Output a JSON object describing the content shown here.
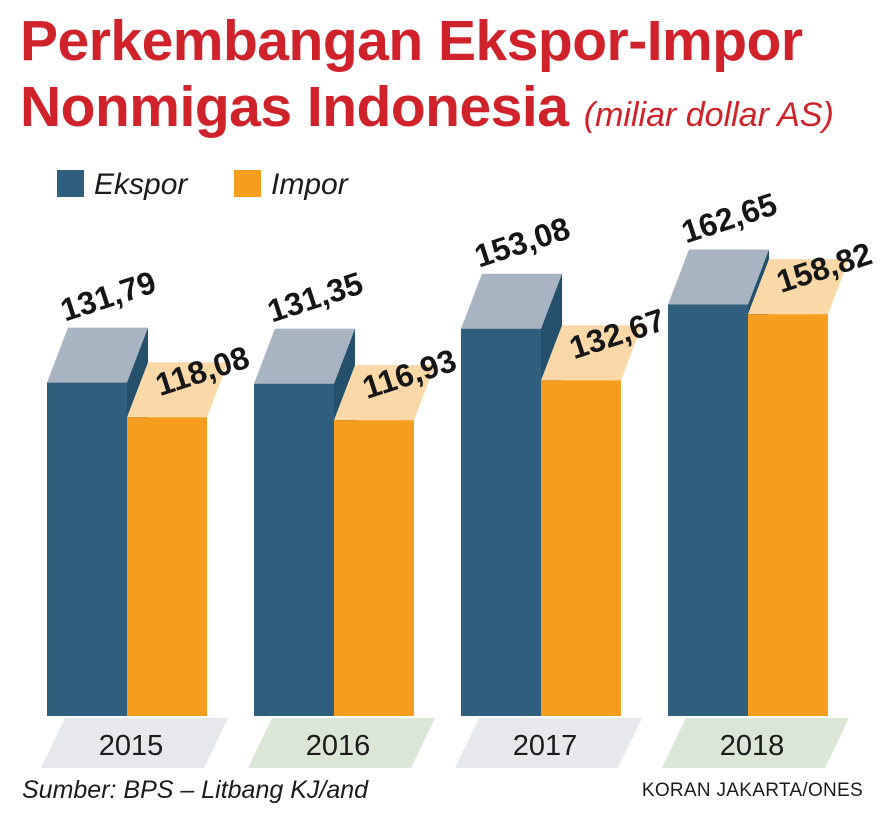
{
  "title": {
    "line1": "Perkembangan Ekspor-Impor",
    "line2": "Nonmigas Indonesia",
    "unit": "(miliar dollar AS)"
  },
  "source": "Sumber: BPS – Litbang KJ/and",
  "credit": "KORAN JAKARTA/ONES",
  "colors": {
    "ekspor_front": "#2f5f7d",
    "ekspor_top": "#a9b4c2",
    "ekspor_side": "#24506b",
    "impor_front": "#f59d1f",
    "impor_top": "#fbd8a8",
    "year_band_a": "#e6e8ec",
    "year_band_b": "#dae6d6"
  },
  "chart_data": {
    "type": "bar",
    "title": "Perkembangan Ekspor-Impor Nonmigas Indonesia",
    "unit": "(miliar dollar AS)",
    "categories": [
      "2015",
      "2016",
      "2017",
      "2018"
    ],
    "series": [
      {
        "name": "Ekspor",
        "values": [
          131.79,
          131.35,
          153.08,
          162.65
        ],
        "labels": [
          "131,79",
          "131,35",
          "153,08",
          "162,65"
        ]
      },
      {
        "name": "Impor",
        "values": [
          118.08,
          116.93,
          132.67,
          158.82
        ],
        "labels": [
          "118,08",
          "116,93",
          "132,67",
          "158,82"
        ]
      }
    ],
    "legend_position": "top-left",
    "grid": false
  }
}
